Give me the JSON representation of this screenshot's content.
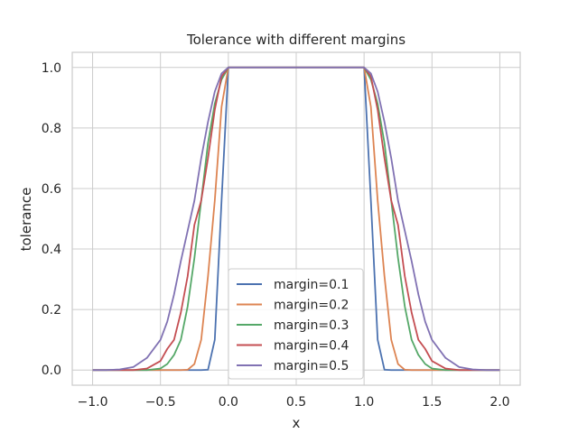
{
  "chart_data": {
    "type": "line",
    "title": "Tolerance with different margins",
    "xlabel": "x",
    "ylabel": "tolerance",
    "xlim": [
      -1.15,
      2.15
    ],
    "ylim": [
      -0.05,
      1.05
    ],
    "xticks": [
      -1.0,
      -0.5,
      0.0,
      0.5,
      1.0,
      1.5,
      2.0
    ],
    "xtick_labels": [
      "−1.0",
      "−0.5",
      "0.0",
      "0.5",
      "1.0",
      "1.5",
      "2.0"
    ],
    "yticks": [
      0.0,
      0.2,
      0.4,
      0.6,
      0.8,
      1.0
    ],
    "ytick_labels": [
      "0.0",
      "0.2",
      "0.4",
      "0.6",
      "0.8",
      "1.0"
    ],
    "grid": true,
    "legend_position": "lower center",
    "x": [
      -1.0,
      -0.9,
      -0.8,
      -0.7,
      -0.6,
      -0.5,
      -0.45,
      -0.4,
      -0.35,
      -0.3,
      -0.25,
      -0.2,
      -0.15,
      -0.1,
      -0.05,
      0.0,
      0.1,
      0.5,
      0.9,
      1.0,
      1.05,
      1.1,
      1.15,
      1.2,
      1.25,
      1.3,
      1.35,
      1.4,
      1.45,
      1.5,
      1.6,
      1.7,
      1.8,
      1.9,
      2.0
    ],
    "series": [
      {
        "name": "margin=0.1",
        "color": "#4c72b0",
        "values": [
          0,
          0,
          0,
          0,
          0,
          0,
          0,
          0,
          0,
          0,
          0,
          0,
          0.001,
          0.1,
          0.56,
          1.0,
          1.0,
          1.0,
          1.0,
          1.0,
          0.56,
          0.1,
          0.001,
          0,
          0,
          0,
          0,
          0,
          0,
          0,
          0,
          0,
          0,
          0,
          0
        ]
      },
      {
        "name": "margin=0.2",
        "color": "#dd8452",
        "values": [
          0,
          0,
          0,
          0,
          0,
          0,
          0,
          0,
          0,
          0.001,
          0.02,
          0.1,
          0.31,
          0.56,
          0.87,
          1.0,
          1.0,
          1.0,
          1.0,
          1.0,
          0.87,
          0.56,
          0.31,
          0.1,
          0.02,
          0.001,
          0,
          0,
          0,
          0,
          0,
          0,
          0,
          0,
          0
        ]
      },
      {
        "name": "margin=0.3",
        "color": "#55a868",
        "values": [
          0,
          0,
          0,
          0,
          0,
          0.005,
          0.02,
          0.05,
          0.1,
          0.21,
          0.37,
          0.56,
          0.75,
          0.88,
          0.96,
          1.0,
          1.0,
          1.0,
          1.0,
          1.0,
          0.96,
          0.88,
          0.75,
          0.56,
          0.37,
          0.21,
          0.1,
          0.05,
          0.02,
          0.005,
          0,
          0,
          0,
          0,
          0
        ]
      },
      {
        "name": "margin=0.4",
        "color": "#c44e52",
        "values": [
          0,
          0,
          0,
          0,
          0.005,
          0.03,
          0.07,
          0.1,
          0.19,
          0.31,
          0.48,
          0.56,
          0.7,
          0.86,
          0.97,
          1.0,
          1.0,
          1.0,
          1.0,
          1.0,
          0.97,
          0.86,
          0.7,
          0.56,
          0.48,
          0.31,
          0.19,
          0.1,
          0.07,
          0.03,
          0.005,
          0,
          0,
          0,
          0
        ]
      },
      {
        "name": "margin=0.5",
        "color": "#8172b3",
        "values": [
          0,
          0,
          0.002,
          0.01,
          0.04,
          0.1,
          0.16,
          0.25,
          0.36,
          0.46,
          0.56,
          0.7,
          0.82,
          0.92,
          0.98,
          1.0,
          1.0,
          1.0,
          1.0,
          1.0,
          0.98,
          0.92,
          0.82,
          0.7,
          0.56,
          0.46,
          0.36,
          0.25,
          0.16,
          0.1,
          0.04,
          0.01,
          0.002,
          0,
          0
        ]
      }
    ]
  }
}
